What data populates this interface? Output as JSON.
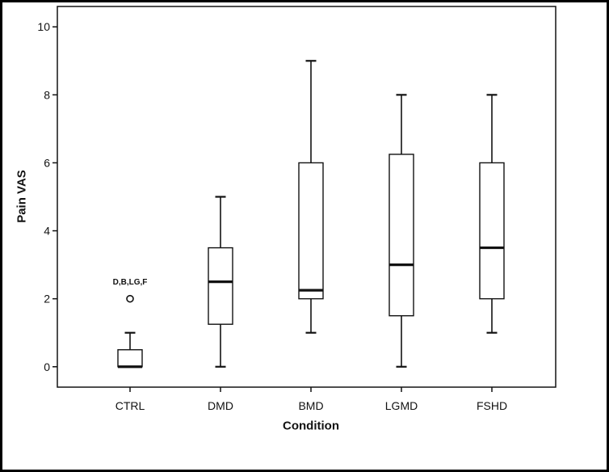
{
  "colors": {
    "ink": "#121212",
    "background": "#ffffff",
    "frame_border": "#000000",
    "box_fill": "#ffffff"
  },
  "chart_data": {
    "type": "boxplot",
    "title": "",
    "xlabel": "Condition",
    "ylabel": "Pain VAS",
    "ylim": [
      -0.6,
      10.6
    ],
    "yticks": [
      0,
      2,
      4,
      6,
      8,
      10
    ],
    "grid": false,
    "legend": null,
    "categories": [
      "CTRL",
      "DMD",
      "BMD",
      "LGMD",
      "FSHD"
    ],
    "boxes": [
      {
        "category": "CTRL",
        "whisker_low": 0,
        "q1": 0,
        "median": 0,
        "q3": 0.5,
        "whisker_high": 1,
        "outliers": [
          2
        ]
      },
      {
        "category": "DMD",
        "whisker_low": 0,
        "q1": 1.25,
        "median": 2.5,
        "q3": 3.5,
        "whisker_high": 5,
        "outliers": []
      },
      {
        "category": "BMD",
        "whisker_low": 1,
        "q1": 2,
        "median": 2.25,
        "q3": 6,
        "whisker_high": 9,
        "outliers": []
      },
      {
        "category": "LGMD",
        "whisker_low": 0,
        "q1": 1.5,
        "median": 3,
        "q3": 6.25,
        "whisker_high": 8,
        "outliers": []
      },
      {
        "category": "FSHD",
        "whisker_low": 1,
        "q1": 2,
        "median": 3.5,
        "q3": 6,
        "whisker_high": 8,
        "outliers": []
      }
    ],
    "annotations": [
      {
        "text": "D,B,LG,F",
        "category": "CTRL",
        "y_value": 2.42
      }
    ]
  }
}
